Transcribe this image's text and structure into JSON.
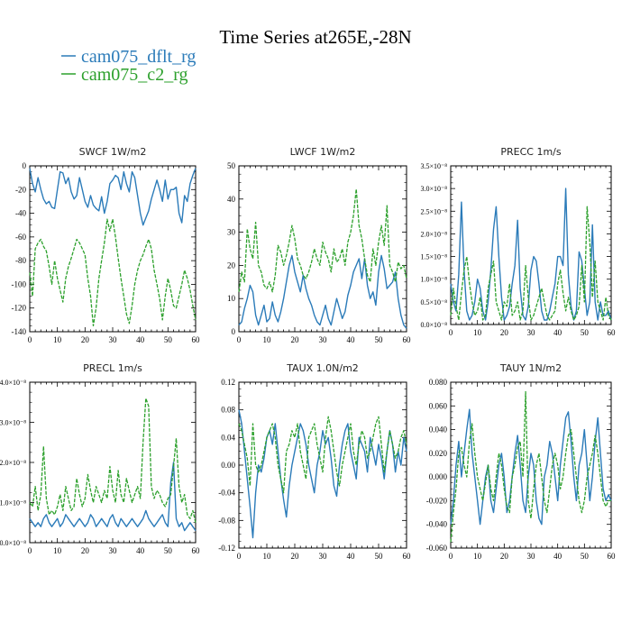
{
  "title": "Time Series at265E,-28N",
  "legend": [
    {
      "name": "cam075_dflt_rg",
      "color": "#2b7bb9"
    },
    {
      "name": "cam075_c2_rg",
      "color": "#2ca02c"
    }
  ],
  "chart_data": [
    {
      "type": "line",
      "title": "SWCF   1W/m2",
      "xlim": [
        0,
        60
      ],
      "ylim": [
        -140,
        0
      ],
      "xticks": [
        "0",
        "10",
        "20",
        "30",
        "40",
        "50",
        "60"
      ],
      "yticks": [
        "0",
        "-20",
        "-40",
        "-60",
        "-80",
        "-100",
        "-120",
        "-140"
      ],
      "series": [
        {
          "name": "cam075_dflt_rg",
          "values": [
            -2,
            -15,
            -22,
            -10,
            -20,
            -28,
            -32,
            -30,
            -35,
            -36,
            -20,
            -5,
            -6,
            -15,
            -10,
            -22,
            -28,
            -25,
            -10,
            -20,
            -30,
            -35,
            -25,
            -33,
            -36,
            -38,
            -26,
            -40,
            -30,
            -15,
            -12,
            -8,
            -10,
            -20,
            -5,
            -15,
            -22,
            -5,
            -10,
            -25,
            -40,
            -50,
            -44,
            -38,
            -28,
            -20,
            -12,
            -20,
            -30,
            -12,
            -28,
            -20,
            -20,
            -18,
            -40,
            -48,
            -25,
            -30,
            -15,
            -8,
            -2
          ]
        },
        {
          "name": "cam075_c2_rg",
          "values": [
            -90,
            -110,
            -70,
            -65,
            -62,
            -68,
            -72,
            -85,
            -100,
            -80,
            -95,
            -105,
            -115,
            -95,
            -85,
            -78,
            -70,
            -62,
            -65,
            -70,
            -75,
            -95,
            -110,
            -135,
            -120,
            -95,
            -80,
            -65,
            -45,
            -55,
            -45,
            -60,
            -78,
            -95,
            -110,
            -125,
            -133,
            -118,
            -100,
            -88,
            -80,
            -75,
            -68,
            -62,
            -70,
            -88,
            -100,
            -112,
            -130,
            -110,
            -95,
            -105,
            -118,
            -120,
            -110,
            -100,
            -88,
            -95,
            -105,
            -118,
            -130
          ]
        }
      ]
    },
    {
      "type": "line",
      "title": "LWCF   1W/m2",
      "xlim": [
        0,
        60
      ],
      "ylim": [
        0,
        50
      ],
      "xticks": [
        "0",
        "10",
        "20",
        "30",
        "40",
        "50",
        "60"
      ],
      "yticks": [
        "0",
        "10",
        "20",
        "30",
        "40",
        "50"
      ],
      "series": [
        {
          "name": "cam075_dflt_rg",
          "values": [
            2,
            3,
            7,
            10,
            14,
            12,
            5,
            2,
            5,
            8,
            3,
            4,
            9,
            5,
            3,
            6,
            10,
            15,
            20,
            23,
            18,
            15,
            12,
            17,
            13,
            10,
            8,
            5,
            3,
            2,
            5,
            8,
            4,
            2,
            6,
            10,
            7,
            4,
            6,
            11,
            14,
            18,
            20,
            22,
            16,
            22,
            14,
            10,
            12,
            8,
            18,
            23,
            19,
            13,
            14,
            15,
            18,
            10,
            5,
            2,
            1
          ]
        },
        {
          "name": "cam075_c2_rg",
          "values": [
            12,
            18,
            15,
            31,
            25,
            22,
            33,
            20,
            18,
            14,
            13,
            15,
            12,
            17,
            26,
            24,
            20,
            23,
            27,
            32,
            28,
            22,
            20,
            17,
            16,
            18,
            21,
            25,
            22,
            20,
            27,
            24,
            22,
            18,
            25,
            21,
            22,
            25,
            20,
            27,
            30,
            35,
            43,
            32,
            28,
            22,
            17,
            15,
            25,
            20,
            27,
            32,
            26,
            38,
            20,
            18,
            15,
            21,
            19,
            20,
            16
          ]
        }
      ]
    },
    {
      "type": "line",
      "title": "PRECC   1m/s",
      "xlim": [
        0,
        60
      ],
      "ylim": [
        0,
        3.5e-08
      ],
      "xticks": [
        "0",
        "10",
        "20",
        "30",
        "40",
        "50",
        "60"
      ],
      "yticks": [
        "0.0×10⁻⁸",
        "0.5×10⁻⁸",
        "1.0×10⁻⁸",
        "1.5×10⁻⁸",
        "2.0×10⁻⁸",
        "2.5×10⁻⁸",
        "3.0×10⁻⁸",
        "3.5×10⁻⁸"
      ],
      "series": [
        {
          "name": "cam075_dflt_rg",
          "values": [
            9e-09,
            5e-09,
            3e-09,
            1.1e-08,
            2.7e-08,
            1.2e-08,
            3e-09,
            1e-09,
            2e-09,
            5e-09,
            1e-08,
            8e-09,
            3e-09,
            1e-09,
            5e-09,
            1.2e-08,
            2.1e-08,
            2.6e-08,
            1.5e-08,
            6e-09,
            1e-09,
            2e-09,
            4e-09,
            9e-09,
            1.3e-08,
            2.3e-08,
            8e-09,
            2e-09,
            1e-09,
            4e-09,
            1.2e-08,
            1.5e-08,
            1.4e-08,
            9e-09,
            3e-09,
            1e-09,
            1e-09,
            3e-09,
            6e-09,
            9e-09,
            1.5e-08,
            1.5e-08,
            1.3e-08,
            3e-08,
            1.1e-08,
            4e-09,
            1e-09,
            3e-09,
            1.6e-08,
            1.4e-08,
            8e-09,
            2e-09,
            5e-09,
            2.2e-08,
            5e-09,
            1e-09,
            5e-09,
            2e-09,
            2e-09,
            3e-09,
            1e-09
          ]
        },
        {
          "name": "cam075_c2_rg",
          "values": [
            2e-09,
            8e-09,
            4e-09,
            1e-09,
            7e-09,
            1.2e-08,
            1.5e-08,
            9e-09,
            5e-09,
            2e-09,
            3e-09,
            6e-09,
            1e-09,
            2e-09,
            8e-09,
            1.1e-08,
            1.4e-08,
            5e-09,
            3e-09,
            1e-09,
            5e-09,
            4e-09,
            9e-09,
            2e-09,
            3e-09,
            5e-09,
            1e-09,
            3e-09,
            1.3e-08,
            6e-09,
            1e-09,
            2e-09,
            4e-09,
            6e-09,
            8e-09,
            5e-09,
            2e-09,
            1e-09,
            2e-09,
            3e-09,
            9e-09,
            1.2e-08,
            7e-09,
            3e-09,
            6e-09,
            3e-09,
            1e-09,
            2e-09,
            4e-09,
            1.3e-08,
            5e-09,
            2.6e-08,
            1.8e-08,
            6e-09,
            1.4e-08,
            5e-09,
            3e-09,
            1e-09,
            6e-09,
            2e-09,
            1e-09
          ]
        }
      ]
    },
    {
      "type": "line",
      "title": "PRECL   1m/s",
      "xlim": [
        0,
        60
      ],
      "ylim": [
        0,
        4e-08
      ],
      "xticks": [
        "0",
        "10",
        "20",
        "30",
        "40",
        "50",
        "60"
      ],
      "yticks": [
        "0.0×10⁻⁸",
        "1.0×10⁻⁸",
        "2.0×10⁻⁸",
        "3.0×10⁻⁸",
        "4.0×10⁻⁸"
      ],
      "series": [
        {
          "name": "cam075_dflt_rg",
          "values": [
            6e-09,
            5e-09,
            4e-09,
            5e-09,
            4e-09,
            6e-09,
            7e-09,
            5e-09,
            4e-09,
            5e-09,
            6e-09,
            4e-09,
            5e-09,
            7e-09,
            6e-09,
            5e-09,
            4e-09,
            5e-09,
            6e-09,
            5e-09,
            4e-09,
            5e-09,
            7e-09,
            6e-09,
            4e-09,
            5e-09,
            6e-09,
            5e-09,
            4e-09,
            6e-09,
            7e-09,
            5e-09,
            4e-09,
            6e-09,
            5e-09,
            4e-09,
            5e-09,
            6e-09,
            5e-09,
            4e-09,
            5e-09,
            6e-09,
            8e-09,
            6e-09,
            5e-09,
            4e-09,
            5e-09,
            6e-09,
            7e-09,
            5e-09,
            4e-09,
            1.5e-08,
            2e-08,
            6e-09,
            4e-09,
            5e-09,
            3e-09,
            4e-09,
            5e-09,
            4e-09,
            3e-09
          ]
        },
        {
          "name": "cam075_c2_rg",
          "values": [
            1e-08,
            9e-09,
            1.4e-08,
            8e-09,
            1.2e-08,
            2.4e-08,
            1.1e-08,
            7e-09,
            8e-09,
            7e-09,
            9e-09,
            1.2e-08,
            8e-09,
            1.4e-08,
            1.1e-08,
            8e-09,
            9e-09,
            1.6e-08,
            1.2e-08,
            9e-09,
            1.1e-08,
            1.7e-08,
            1.3e-08,
            1e-08,
            1.4e-08,
            1.2e-08,
            1e-08,
            1.3e-08,
            1.1e-08,
            1.9e-08,
            1.3e-08,
            1e-08,
            1.8e-08,
            1.2e-08,
            1e-08,
            1.6e-08,
            1.3e-08,
            1e-08,
            1.2e-08,
            1.4e-08,
            1.1e-08,
            2.5e-08,
            3.6e-08,
            3.4e-08,
            1.4e-08,
            1.1e-08,
            1.3e-08,
            1.2e-08,
            1e-08,
            9e-09,
            1.1e-08,
            1.2e-08,
            1.9e-08,
            2.6e-08,
            1.4e-08,
            1e-08,
            1.2e-08,
            7e-09,
            6e-09,
            8e-09,
            5e-09
          ]
        }
      ]
    },
    {
      "type": "line",
      "title": "TAUX   1.0N/m2",
      "xlim": [
        0,
        60
      ],
      "ylim": [
        -0.12,
        0.12
      ],
      "xticks": [
        "0",
        "10",
        "20",
        "30",
        "40",
        "50",
        "60"
      ],
      "yticks": [
        "0.12",
        "0.08",
        "0.04",
        "0.00",
        "-0.04",
        "-0.08",
        "-0.12"
      ],
      "series": [
        {
          "name": "cam075_dflt_rg",
          "values": [
            0.08,
            0.06,
            0.02,
            -0.02,
            -0.06,
            -0.105,
            -0.04,
            0.0,
            -0.01,
            0.01,
            0.04,
            0.05,
            0.03,
            0.06,
            0.02,
            -0.02,
            -0.05,
            -0.075,
            -0.03,
            0.0,
            0.02,
            0.04,
            0.06,
            0.05,
            0.03,
            0.0,
            -0.02,
            -0.04,
            0.0,
            0.02,
            0.05,
            0.03,
            0.04,
            0.01,
            -0.03,
            -0.045,
            0.0,
            0.03,
            0.05,
            0.06,
            0.02,
            0.0,
            -0.02,
            0.04,
            0.03,
            0.02,
            -0.01,
            0.04,
            0.02,
            0.0,
            0.03,
            0.01,
            -0.02,
            0.02,
            0.05,
            0.03,
            -0.01,
            0.02,
            0.0,
            0.04,
            0.02
          ]
        },
        {
          "name": "cam075_c2_rg",
          "values": [
            0.06,
            0.05,
            0.03,
            0.01,
            -0.03,
            0.06,
            0.0,
            -0.01,
            0.0,
            0.02,
            0.04,
            0.05,
            0.06,
            0.04,
            0.0,
            -0.02,
            -0.04,
            0.02,
            0.03,
            0.05,
            0.04,
            0.06,
            0.02,
            0.0,
            -0.02,
            0.04,
            0.05,
            0.06,
            0.03,
            0.01,
            -0.01,
            0.04,
            0.07,
            0.05,
            0.02,
            -0.01,
            -0.03,
            0.0,
            0.02,
            0.04,
            0.06,
            0.02,
            0.0,
            0.03,
            0.05,
            0.04,
            0.01,
            0.02,
            0.04,
            0.06,
            0.07,
            0.03,
            -0.01,
            0.02,
            0.05,
            0.03,
            0.01,
            0.02,
            0.04,
            0.05,
            0.03
          ]
        }
      ]
    },
    {
      "type": "line",
      "title": "TAUY   1N/m2",
      "xlim": [
        0,
        60
      ],
      "ylim": [
        -0.06,
        0.08
      ],
      "xticks": [
        "0",
        "10",
        "20",
        "30",
        "40",
        "50",
        "60"
      ],
      "yticks": [
        "0.080",
        "0.060",
        "0.040",
        "0.020",
        "0.000",
        "-0.020",
        "-0.040",
        "-0.060"
      ],
      "series": [
        {
          "name": "cam075_dflt_rg",
          "values": [
            -0.04,
            -0.02,
            0.01,
            0.03,
            0.0,
            0.02,
            0.04,
            0.057,
            0.02,
            0.0,
            -0.02,
            -0.04,
            -0.02,
            0.0,
            0.01,
            -0.02,
            -0.03,
            -0.01,
            0.01,
            0.02,
            0.0,
            -0.03,
            -0.02,
            0.0,
            0.02,
            0.035,
            0.01,
            -0.02,
            -0.03,
            0.0,
            0.02,
            0.01,
            -0.02,
            -0.035,
            -0.04,
            0.0,
            0.01,
            0.03,
            0.02,
            0.0,
            -0.02,
            0.01,
            0.03,
            0.05,
            0.055,
            0.03,
            0.0,
            -0.02,
            0.01,
            0.02,
            0.04,
            0.01,
            -0.02,
            0.0,
            0.03,
            0.05,
            0.02,
            -0.01,
            -0.02,
            -0.015,
            -0.02
          ]
        },
        {
          "name": "cam075_c2_rg",
          "values": [
            -0.055,
            -0.03,
            -0.01,
            0.02,
            0.025,
            0.01,
            0.0,
            0.03,
            0.045,
            0.02,
            0.0,
            -0.01,
            -0.02,
            -0.005,
            0.01,
            -0.01,
            -0.02,
            0.0,
            0.02,
            0.01,
            -0.01,
            -0.025,
            -0.03,
            0.0,
            0.01,
            0.025,
            0.03,
            0.0,
            0.072,
            -0.02,
            -0.035,
            -0.01,
            0.01,
            0.02,
            0.0,
            -0.02,
            -0.03,
            -0.01,
            0.01,
            0.02,
            0.01,
            -0.01,
            0.0,
            0.02,
            0.035,
            0.04,
            0.02,
            0.0,
            -0.02,
            -0.03,
            -0.02,
            0.0,
            0.01,
            0.02,
            0.035,
            0.02,
            0.0,
            -0.02,
            -0.025,
            -0.02,
            -0.02
          ]
        }
      ]
    }
  ]
}
